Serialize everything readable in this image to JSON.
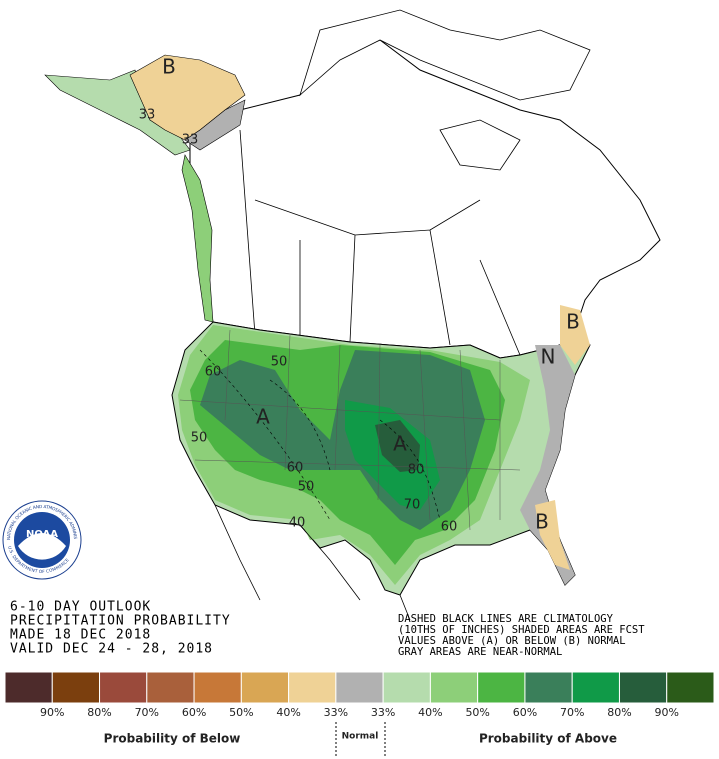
{
  "header": {
    "lines": [
      "6-10 DAY OUTLOOK",
      "PRECIPITATION PROBABILITY",
      "MADE  18 DEC 2018",
      "VALID  DEC 24 - 28, 2018"
    ]
  },
  "notes": [
    "DASHED BLACK LINES ARE CLIMATOLOGY",
    "(10THS OF INCHES) SHADED AREAS ARE FCST",
    "VALUES ABOVE (A) OR BELOW (B) NORMAL",
    "GRAY AREAS ARE NEAR-NORMAL"
  ],
  "logo": {
    "name": "NOAA",
    "ring_top": "NATIONAL OCEANIC AND ATMOSPHERIC ADMINISTRATION",
    "ring_bottom": "U.S. DEPARTMENT OF COMMERCE"
  },
  "map_labels": [
    "B",
    "33",
    "33",
    "50",
    "60",
    "A",
    "50",
    "A",
    "60",
    "50",
    "80",
    "70",
    "60",
    "40",
    "B",
    "N",
    "B"
  ],
  "legend": {
    "colors": [
      "#4d2b2b",
      "#7b3f0e",
      "#9a4a3b",
      "#a9603b",
      "#c77838",
      "#d9a654",
      "#efd296",
      "#b1b1b1",
      "#b5dcad",
      "#8dcf79",
      "#4cb543",
      "#3a7f5a",
      "#109a48",
      "#265d3b",
      "#2b5b19"
    ],
    "labels": [
      "90%",
      "80%",
      "70%",
      "60%",
      "50%",
      "40%",
      "33%",
      "33%",
      "40%",
      "50%",
      "60%",
      "70%",
      "80%",
      "90%"
    ],
    "below": "Probability of Below",
    "normal": "Normal",
    "above": "Probability of Above"
  }
}
